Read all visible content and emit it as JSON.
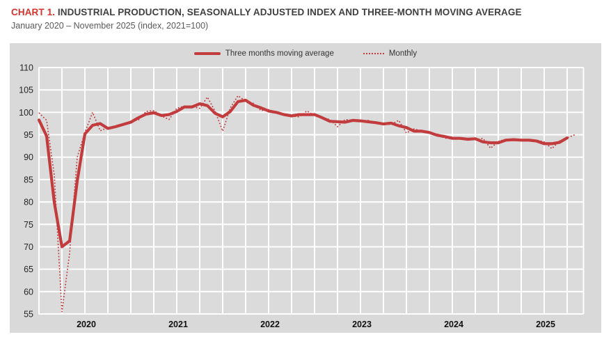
{
  "header": {
    "chart_label": "CHART 1.",
    "title": " INDUSTRIAL PRODUCTION, SEASONALLY ADJUSTED INDEX AND THREE-MONTH MOVING AVERAGE",
    "subtitle": "January 2020 – November 2025 (index, 2021=100)"
  },
  "legend": {
    "ma_label": "Three months moving average",
    "monthly_label": "Monthly"
  },
  "colors": {
    "accent_red": "#d6332c",
    "line_red": "#c23b3d",
    "chart_bg": "#d9d9d9",
    "plot_bg": "#dbdbdb",
    "grid_white": "#ffffff",
    "title_text": "#404040",
    "subtitle_text": "#595959",
    "tick_text": "#262626",
    "year_text": "#111111"
  },
  "chart_data": {
    "type": "line",
    "title": "CHART 1. INDUSTRIAL PRODUCTION, SEASONALLY ADJUSTED INDEX AND THREE-MONTH MOVING AVERAGE",
    "subtitle": "January 2020 – November 2025 (index, 2021=100)",
    "x_start": "2020-01",
    "x_end": "2025-11",
    "ylim": [
      55,
      110
    ],
    "y_ticks": [
      110,
      105,
      100,
      95,
      90,
      85,
      80,
      75,
      70,
      65,
      60,
      55
    ],
    "x_year_labels": [
      "2020",
      "2021",
      "2022",
      "2023",
      "2024",
      "2025"
    ],
    "grid": "on",
    "legend_position": "top-center",
    "months": [
      "2020-01",
      "2020-02",
      "2020-03",
      "2020-04",
      "2020-05",
      "2020-06",
      "2020-07",
      "2020-08",
      "2020-09",
      "2020-10",
      "2020-11",
      "2020-12",
      "2021-01",
      "2021-02",
      "2021-03",
      "2021-04",
      "2021-05",
      "2021-06",
      "2021-07",
      "2021-08",
      "2021-09",
      "2021-10",
      "2021-11",
      "2021-12",
      "2022-01",
      "2022-02",
      "2022-03",
      "2022-04",
      "2022-05",
      "2022-06",
      "2022-07",
      "2022-08",
      "2022-09",
      "2022-10",
      "2022-11",
      "2022-12",
      "2023-01",
      "2023-02",
      "2023-03",
      "2023-04",
      "2023-05",
      "2023-06",
      "2023-07",
      "2023-08",
      "2023-09",
      "2023-10",
      "2023-11",
      "2023-12",
      "2024-01",
      "2024-02",
      "2024-03",
      "2024-04",
      "2024-05",
      "2024-06",
      "2024-07",
      "2024-08",
      "2024-09",
      "2024-10",
      "2024-11",
      "2024-12",
      "2025-01",
      "2025-02",
      "2025-03",
      "2025-04",
      "2025-05",
      "2025-06",
      "2025-07",
      "2025-08",
      "2025-09",
      "2025-10",
      "2025-11"
    ],
    "series": [
      {
        "name": "Three months moving average",
        "style": "solid",
        "values": [
          98.3,
          94.7,
          79.9,
          70.0,
          71.3,
          84.7,
          95.2,
          97.1,
          97.5,
          96.4,
          96.8,
          97.3,
          97.8,
          98.8,
          99.6,
          99.9,
          99.3,
          99.5,
          100.2,
          101.2,
          101.2,
          101.9,
          101.5,
          99.8,
          99.0,
          100.2,
          102.4,
          102.7,
          101.6,
          101.0,
          100.3,
          100.0,
          99.5,
          99.2,
          99.5,
          99.5,
          99.5,
          98.8,
          98.0,
          97.9,
          97.8,
          98.2,
          98.1,
          97.9,
          97.7,
          97.4,
          97.6,
          97.0,
          96.6,
          95.8,
          95.8,
          95.5,
          94.9,
          94.6,
          94.2,
          94.2,
          94.0,
          94.1,
          93.4,
          93.2,
          93.2,
          93.8,
          93.9,
          93.8,
          93.8,
          93.6,
          93.0,
          93.0,
          93.3,
          94.3,
          null
        ]
      },
      {
        "name": "Monthly",
        "style": "dotted",
        "values": [
          99.9,
          98.2,
          86.0,
          55.5,
          68.5,
          90.0,
          95.5,
          100.0,
          95.9,
          96.6,
          96.8,
          97.1,
          98.0,
          98.3,
          100.2,
          100.4,
          99.2,
          98.4,
          100.9,
          101.4,
          101.3,
          100.9,
          103.4,
          100.3,
          95.8,
          101.0,
          103.7,
          102.5,
          102.0,
          100.4,
          100.6,
          100.0,
          99.4,
          99.2,
          99.0,
          100.3,
          99.3,
          98.8,
          98.4,
          96.8,
          98.4,
          98.2,
          98.0,
          98.2,
          97.6,
          97.4,
          97.3,
          98.2,
          95.4,
          96.3,
          95.8,
          95.4,
          95.2,
          94.2,
          94.5,
          94.0,
          94.1,
          93.9,
          94.2,
          92.0,
          93.5,
          94.0,
          93.8,
          93.9,
          93.6,
          93.8,
          93.4,
          91.9,
          93.6,
          94.3,
          95.0
        ]
      }
    ]
  }
}
